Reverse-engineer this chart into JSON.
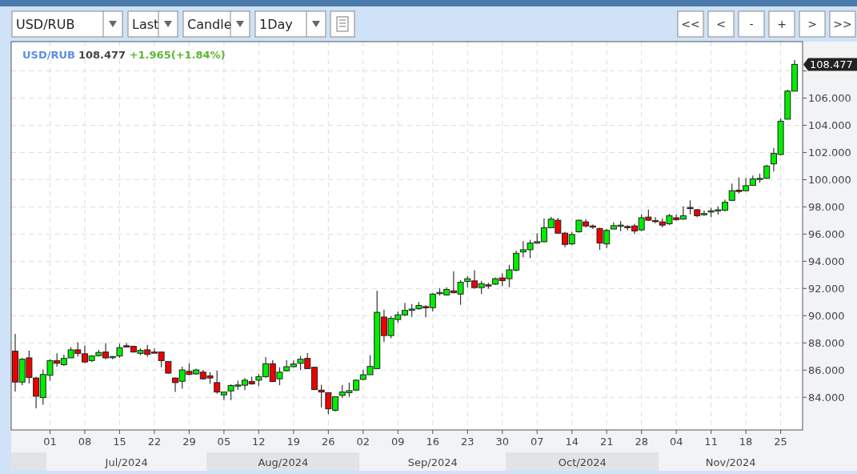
{
  "chart_data": {
    "type": "candlestick",
    "title": "USD/RUB",
    "subtitle": "108.477 +1.965(+1.84%)",
    "categories": [
      null,
      null,
      null,
      null,
      null,
      "01",
      null,
      null,
      null,
      null,
      "08",
      null,
      null,
      null,
      null,
      "15",
      null,
      null,
      null,
      null,
      "22",
      null,
      null,
      null,
      null,
      "29",
      null,
      null,
      null,
      null,
      "05",
      null,
      null,
      null,
      null,
      "12",
      null,
      null,
      null,
      null,
      "19",
      null,
      null,
      null,
      null,
      "26",
      null,
      null,
      null,
      null,
      "02",
      null,
      null,
      null,
      null,
      "09",
      null,
      null,
      null,
      null,
      "16",
      null,
      null,
      null,
      null,
      "23",
      null,
      null,
      null,
      null,
      "30",
      null,
      null,
      null,
      null,
      "07",
      null,
      null,
      null,
      null,
      "14",
      null,
      null,
      null,
      null,
      "21",
      null,
      null,
      null,
      null,
      "28",
      null,
      null,
      null,
      null,
      "04",
      null,
      null,
      null,
      null,
      "11",
      null,
      null,
      null,
      null,
      "18",
      null,
      null,
      null,
      null,
      "25",
      null,
      null
    ],
    "ohlc": [
      [
        87.39,
        88.67,
        84.43,
        85.12
      ],
      [
        85.12,
        86.9,
        84.9,
        86.8
      ],
      [
        86.9,
        87.43,
        85.03,
        85.46
      ],
      [
        85.42,
        85.52,
        83.19,
        84.08
      ],
      [
        83.98,
        86.05,
        83.45,
        85.68
      ],
      [
        85.62,
        86.8,
        85.22,
        86.7
      ],
      [
        86.7,
        87.23,
        86.25,
        86.5
      ],
      [
        86.4,
        87.14,
        86.31,
        86.86
      ],
      [
        86.9,
        87.69,
        86.9,
        87.49
      ],
      [
        87.49,
        88.04,
        87.0,
        87.23
      ],
      [
        87.2,
        87.79,
        86.5,
        86.6
      ],
      [
        86.7,
        87.1,
        86.6,
        87.04
      ],
      [
        87.06,
        87.49,
        87.0,
        87.3
      ],
      [
        87.33,
        87.98,
        86.8,
        86.9
      ],
      [
        86.94,
        87.04,
        86.8,
        87.0
      ],
      [
        87.04,
        87.94,
        86.9,
        87.65
      ],
      [
        87.79,
        87.98,
        87.69,
        87.75
      ],
      [
        87.75,
        87.79,
        87.29,
        87.33
      ],
      [
        87.23,
        87.6,
        87.1,
        87.45
      ],
      [
        87.49,
        87.85,
        86.97,
        87.16
      ],
      [
        87.33,
        87.6,
        87.25,
        87.31
      ],
      [
        87.33,
        87.33,
        86.21,
        86.7
      ],
      [
        86.64,
        86.64,
        85.72,
        85.78
      ],
      [
        85.42,
        85.46,
        84.39,
        85.08
      ],
      [
        85.18,
        86.25,
        84.63,
        86.01
      ],
      [
        85.91,
        86.5,
        85.62,
        85.68
      ],
      [
        85.72,
        86.11,
        85.66,
        86.01
      ],
      [
        85.85,
        86.01,
        85.29,
        85.36
      ],
      [
        85.58,
        85.85,
        84.99,
        85.42
      ],
      [
        85.08,
        85.95,
        84.27,
        84.39
      ],
      [
        84.18,
        84.43,
        83.8,
        84.39
      ],
      [
        84.47,
        84.95,
        83.8,
        84.87
      ],
      [
        84.89,
        85.22,
        84.55,
        84.91
      ],
      [
        84.89,
        85.42,
        84.53,
        85.26
      ],
      [
        85.16,
        85.52,
        84.93,
        84.99
      ],
      [
        85.26,
        85.72,
        84.83,
        85.52
      ],
      [
        85.52,
        86.96,
        85.42,
        86.47
      ],
      [
        86.47,
        86.74,
        85.12,
        85.16
      ],
      [
        85.36,
        86.21,
        84.89,
        85.85
      ],
      [
        85.95,
        86.74,
        85.9,
        86.25
      ],
      [
        86.25,
        86.7,
        86.2,
        86.45
      ],
      [
        86.5,
        87.04,
        86.0,
        86.8
      ],
      [
        86.86,
        87.25,
        86.07,
        86.11
      ],
      [
        86.21,
        86.25,
        84.53,
        84.57
      ],
      [
        84.53,
        84.93,
        83.26,
        84.39
      ],
      [
        84.34,
        84.34,
        82.76,
        83.15
      ],
      [
        83.05,
        84.04,
        82.95,
        84.04
      ],
      [
        84.14,
        84.89,
        83.95,
        84.39
      ],
      [
        84.34,
        85.08,
        84.04,
        84.49
      ],
      [
        84.53,
        85.32,
        84.47,
        85.26
      ],
      [
        85.32,
        86.01,
        85.26,
        85.66
      ],
      [
        85.66,
        87.1,
        85.66,
        86.27
      ],
      [
        86.11,
        91.83,
        86.07,
        90.25
      ],
      [
        89.9,
        90.45,
        88.08,
        88.54
      ],
      [
        88.54,
        89.96,
        88.34,
        89.8
      ],
      [
        89.72,
        90.31,
        89.48,
        90.06
      ],
      [
        90.06,
        90.94,
        89.96,
        90.39
      ],
      [
        90.47,
        90.86,
        89.92,
        90.49
      ],
      [
        90.51,
        91.01,
        90.45,
        90.75
      ],
      [
        90.67,
        90.77,
        89.88,
        90.63
      ],
      [
        90.59,
        91.67,
        90.31,
        91.59
      ],
      [
        91.67,
        92.03,
        91.48,
        91.71
      ],
      [
        91.53,
        92.09,
        91.48,
        91.93
      ],
      [
        91.83,
        93.27,
        91.63,
        91.69
      ],
      [
        91.59,
        92.62,
        90.8,
        92.46
      ],
      [
        92.52,
        92.92,
        92.07,
        92.72
      ],
      [
        92.56,
        93.35,
        91.97,
        92.07
      ],
      [
        92.07,
        92.56,
        91.59,
        92.36
      ],
      [
        92.27,
        92.42,
        91.99,
        92.25
      ],
      [
        92.32,
        92.82,
        92.25,
        92.72
      ],
      [
        92.78,
        93.11,
        92.17,
        92.58
      ],
      [
        92.72,
        93.74,
        92.11,
        93.37
      ],
      [
        93.35,
        94.79,
        93.27,
        94.59
      ],
      [
        94.69,
        95.48,
        94.3,
        94.85
      ],
      [
        94.85,
        95.58,
        94.24,
        95.34
      ],
      [
        95.34,
        96.07,
        95.28,
        95.44
      ],
      [
        95.44,
        97.16,
        95.38,
        96.47
      ],
      [
        96.47,
        97.27,
        96.47,
        97.1
      ],
      [
        97.02,
        97.2,
        96.03,
        96.07
      ],
      [
        96.07,
        96.17,
        95.04,
        95.24
      ],
      [
        95.28,
        96.17,
        95.18,
        95.97
      ],
      [
        96.17,
        97.06,
        96.11,
        97.02
      ],
      [
        96.9,
        97.1,
        96.5,
        96.6
      ],
      [
        96.6,
        96.7,
        96.37,
        96.52
      ],
      [
        96.41,
        96.47,
        94.85,
        95.34
      ],
      [
        95.28,
        96.37,
        94.98,
        96.27
      ],
      [
        96.37,
        96.86,
        96.37,
        96.62
      ],
      [
        96.64,
        96.96,
        96.21,
        96.66
      ],
      [
        96.56,
        96.66,
        96.27,
        96.54
      ],
      [
        96.6,
        96.76,
        96.01,
        96.23
      ],
      [
        96.31,
        97.45,
        96.23,
        97.2
      ],
      [
        97.25,
        97.81,
        96.96,
        97.02
      ],
      [
        97.0,
        97.25,
        96.8,
        96.98
      ],
      [
        96.9,
        97.16,
        96.5,
        96.66
      ],
      [
        96.76,
        97.49,
        96.66,
        97.35
      ],
      [
        97.2,
        97.45,
        97.0,
        97.06
      ],
      [
        97.1,
        98.04,
        97.06,
        97.35
      ],
      [
        97.96,
        98.48,
        97.45,
        97.94
      ],
      [
        97.79,
        97.85,
        97.25,
        97.35
      ],
      [
        97.49,
        97.75,
        97.35,
        97.51
      ],
      [
        97.65,
        97.94,
        97.25,
        97.71
      ],
      [
        97.77,
        98.04,
        97.43,
        97.79
      ],
      [
        97.75,
        98.54,
        97.69,
        98.34
      ],
      [
        98.48,
        99.72,
        98.44,
        99.19
      ],
      [
        99.23,
        100.17,
        98.99,
        99.13
      ],
      [
        99.19,
        100.11,
        99.13,
        99.56
      ],
      [
        99.58,
        100.31,
        99.58,
        100.06
      ],
      [
        100.08,
        100.45,
        99.78,
        100.1
      ],
      [
        100.1,
        101.1,
        100.06,
        101.0
      ],
      [
        101.16,
        102.34,
        100.61,
        101.93
      ],
      [
        101.85,
        104.51,
        101.79,
        104.3
      ],
      [
        104.45,
        106.62,
        104.45,
        106.512
      ],
      [
        106.51,
        108.79,
        106.51,
        108.477
      ]
    ],
    "ylim": [
      81.6,
      110.15
    ],
    "yticks": [
      {
        "value": 84,
        "label": "84.000"
      },
      {
        "value": 86,
        "label": "86.000"
      },
      {
        "value": 88,
        "label": "88.000"
      },
      {
        "value": 90,
        "label": "90.000"
      },
      {
        "value": 92,
        "label": "92.000"
      },
      {
        "value": 94,
        "label": "94.000"
      },
      {
        "value": 96,
        "label": "96.000"
      },
      {
        "value": 98,
        "label": "98.000"
      },
      {
        "value": 100,
        "label": "100.000"
      },
      {
        "value": 102,
        "label": "102.000"
      },
      {
        "value": 104,
        "label": "104.000"
      },
      {
        "value": 106,
        "label": "106.000"
      },
      {
        "value": 108,
        "label": null
      }
    ],
    "grid": true,
    "annotations": [
      "108.477",
      "Jul/2024",
      "Aug/2024",
      "Sep/2024",
      "Oct/2024",
      "Nov/2024",
      "USD/RUB",
      "Last",
      "Candle",
      "1Day",
      "<<",
      "<",
      "-",
      "+",
      ">",
      ">>"
    ]
  }
}
